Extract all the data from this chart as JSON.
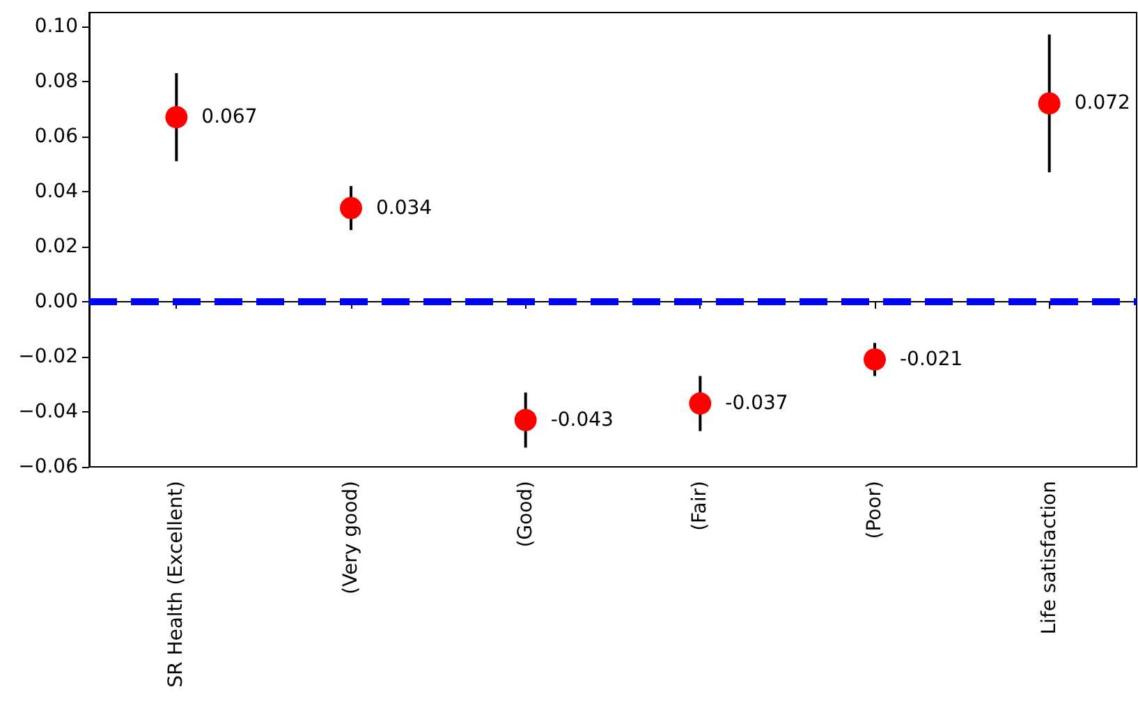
{
  "chart_data": {
    "type": "scatter",
    "categories": [
      "SR Health (Excellent)",
      "(Very good)",
      "(Good)",
      "(Fair)",
      "(Poor)",
      "Life satisfaction"
    ],
    "values": [
      0.067,
      0.034,
      -0.043,
      -0.037,
      -0.021,
      0.072
    ],
    "errors": [
      0.016,
      0.008,
      0.01,
      0.01,
      0.006,
      0.025
    ],
    "color": "#ff0000",
    "marker": "circle",
    "data_labels": true,
    "grid": false,
    "ylim": [
      -0.06,
      0.105
    ],
    "yticks": [
      {
        "value": -0.06,
        "label": "−0.06"
      },
      {
        "value": -0.04,
        "label": "−0.04"
      },
      {
        "value": -0.02,
        "label": "−0.02"
      },
      {
        "value": 0,
        "label": "0.00"
      },
      {
        "value": 0.02,
        "label": "0.02"
      },
      {
        "value": 0.04,
        "label": "0.04"
      },
      {
        "value": 0.06,
        "label": "0.06"
      },
      {
        "value": 0.08,
        "label": "0.08"
      },
      {
        "value": 0.1,
        "label": "0.10"
      }
    ],
    "ref_lines": [
      {
        "axis": "y",
        "value": 0,
        "color": "#0000ff",
        "line_style": "dashed"
      }
    ]
  }
}
